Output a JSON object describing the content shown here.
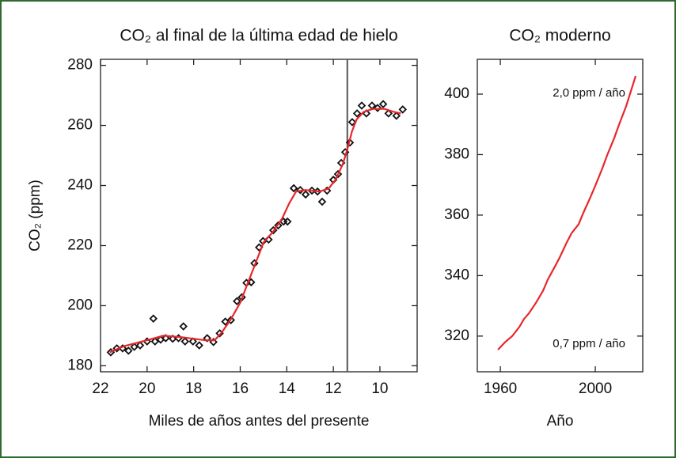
{
  "chart_data": [
    {
      "type": "scatter",
      "title": "CO₂ al final de la última edad de hielo",
      "x_label": "Miles de años antes del presente",
      "y_label": "CO₂ (ppm)",
      "xlim": [
        22,
        8.4
      ],
      "ylim": [
        178,
        282
      ],
      "xticks": [
        22,
        20,
        18,
        16,
        14,
        12,
        10
      ],
      "yticks": [
        180,
        200,
        220,
        240,
        260,
        280
      ],
      "vline": 11.4,
      "series": [
        {
          "style": "markers",
          "color": "#111111",
          "x": [
            21.56,
            21.3,
            21.05,
            20.8,
            20.55,
            20.3,
            20.0,
            19.73,
            19.66,
            19.42,
            19.2,
            18.9,
            18.65,
            18.44,
            18.37,
            18.03,
            17.76,
            17.42,
            17.15,
            16.88,
            16.64,
            16.4,
            16.14,
            15.93,
            15.73,
            15.53,
            15.39,
            15.19,
            15.02,
            14.78,
            14.58,
            14.37,
            14.14,
            13.97,
            13.7,
            13.42,
            13.19,
            12.92,
            12.68,
            12.48,
            12.27,
            12.0,
            11.8,
            11.66,
            11.49,
            11.29,
            11.19,
            10.98,
            10.78,
            10.58,
            10.34,
            10.1,
            9.86,
            9.63,
            9.29,
            9.02
          ],
          "values": [
            184.5,
            185.8,
            185.8,
            185,
            186.3,
            186.8,
            188.1,
            195.7,
            188.1,
            188.7,
            189.2,
            189,
            189.2,
            193.1,
            188.1,
            188.1,
            186.8,
            189.2,
            187.9,
            190.8,
            194.7,
            195.2,
            201.5,
            202.8,
            207.6,
            207.8,
            214.1,
            219.4,
            221.5,
            222,
            225.1,
            226.7,
            228,
            228,
            239.1,
            238.5,
            237,
            238.3,
            238,
            234.6,
            238.3,
            241.9,
            243.8,
            247.5,
            251.1,
            254.3,
            261.1,
            264,
            266.6,
            264,
            266.6,
            265.8,
            267.1,
            264,
            263.2,
            265.3
          ]
        },
        {
          "style": "line",
          "color": "#e8262b",
          "x": [
            21.6,
            21,
            20,
            19.3,
            18.5,
            17.5,
            17.1,
            16.8,
            16.4,
            16,
            15.6,
            15.3,
            15,
            14.6,
            14.2,
            13.9,
            13.6,
            13.2,
            12.6,
            12.2,
            11.9,
            11.6,
            11.4,
            11.2,
            11,
            10.7,
            10.3,
            9.8,
            9.4,
            9.1
          ],
          "values": [
            184.5,
            186.5,
            188.5,
            190,
            189.5,
            188.5,
            188.5,
            191,
            195.5,
            201,
            209,
            215,
            221,
            224.5,
            229,
            234,
            238,
            238.5,
            238,
            239,
            242,
            247,
            252,
            258,
            262,
            264.5,
            265.5,
            265.5,
            264.5,
            264
          ]
        }
      ]
    },
    {
      "type": "line",
      "title": "CO₂ moderno",
      "x_label": "Año",
      "xlim": [
        1950.3,
        2020
      ],
      "ylim": [
        308.2,
        411.5
      ],
      "xticks": [
        1960,
        2000
      ],
      "yticks": [
        320,
        340,
        360,
        380,
        400
      ],
      "annotations": [
        "2,0 ppm / año",
        "0,7 ppm / año"
      ],
      "series": [
        {
          "style": "line",
          "color": "#e8262b",
          "x": [
            1959,
            1962,
            1965,
            1968,
            1970,
            1972,
            1975,
            1978,
            1980,
            1983,
            1985,
            1988,
            1990,
            1993,
            1995,
            1998,
            2000,
            2003,
            2005,
            2008,
            2010,
            2013,
            2015,
            2017
          ],
          "values": [
            315.5,
            318,
            320,
            323,
            325.7,
            327.5,
            331,
            335,
            338.7,
            343,
            346,
            351,
            354,
            357,
            360.8,
            366,
            369.7,
            375.5,
            379.8,
            385.5,
            389.9,
            396,
            401,
            406
          ]
        }
      ]
    }
  ]
}
